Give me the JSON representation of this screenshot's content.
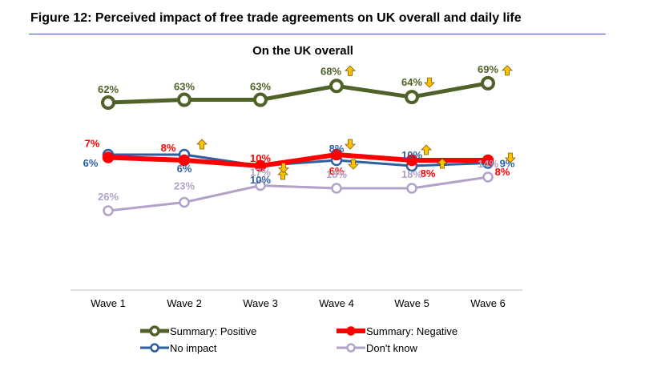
{
  "figure_title": "Figure 12: Perceived impact of free trade agreements on UK overall and daily life",
  "chart_data": {
    "type": "line",
    "title": "On the UK overall",
    "categories": [
      "Wave 1",
      "Wave 2",
      "Wave 3",
      "Wave 4",
      "Wave 5",
      "Wave 6"
    ],
    "series": [
      {
        "name": "Summary: Positive",
        "color": "#4f6228",
        "values": [
          62,
          63,
          63,
          68,
          64,
          69
        ],
        "labels": [
          "62%",
          "63%",
          "63%",
          "68%",
          "64%",
          "69%"
        ],
        "arrows": [
          null,
          null,
          null,
          "up",
          "down",
          "up"
        ]
      },
      {
        "name": "Summary: Negative",
        "color": "#ff0000",
        "values": [
          7,
          8,
          10,
          6,
          8,
          8
        ],
        "labels": [
          "7%",
          "8%",
          "10%",
          "6%",
          "8%",
          "8%"
        ],
        "arrows": [
          null,
          "up",
          null,
          "down",
          "up",
          null
        ]
      },
      {
        "name": "No impact",
        "color": "#2e5fa0",
        "values": [
          6,
          6,
          10,
          8,
          10,
          9
        ],
        "labels": [
          "6%",
          "6%",
          "10%",
          "8%",
          "10%",
          "9%"
        ],
        "arrows": [
          null,
          null,
          "up",
          "down",
          "up",
          null
        ]
      },
      {
        "name": "Don't know",
        "color": "#b3a2c7",
        "values": [
          26,
          23,
          17,
          18,
          18,
          14
        ],
        "labels": [
          "26%",
          "23%",
          "17%",
          "18%",
          "18%",
          "14%"
        ],
        "arrows": [
          null,
          null,
          "down",
          null,
          null,
          "down"
        ]
      }
    ],
    "arrow_color": "#ffc000",
    "legend_placement": "bottom",
    "grid": false
  }
}
